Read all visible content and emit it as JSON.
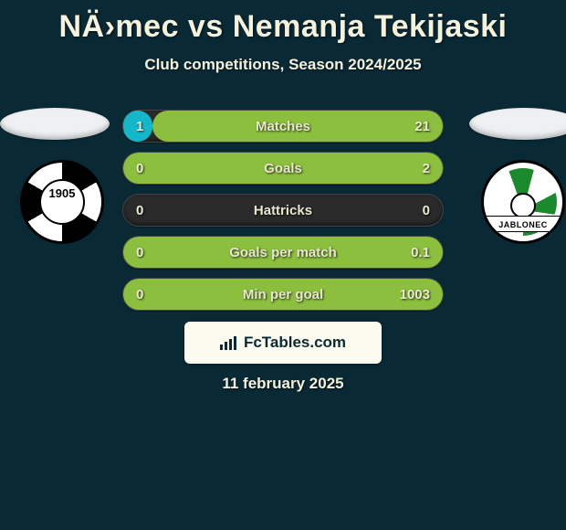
{
  "title": "NÄ›mec vs Nemanja Tekijaski",
  "subtitle": "Club competitions, Season 2024/2025",
  "date_text": "11 february 2025",
  "branding": "FcTables.com",
  "colors": {
    "background": "#092935",
    "text": "#f4f2dc",
    "pill_bg": "#2a2a2a",
    "left_series": "#12b8c9",
    "right_series": "#8dbf3f"
  },
  "layout": {
    "pill_width": 352,
    "pill_height": 36,
    "pill_radius": 18,
    "label_fontsize": 15,
    "value_fontsize": 15,
    "title_fontsize": 34,
    "subtitle_fontsize": 17
  },
  "left_badge": {
    "name": "SK Dynamo České Budějovice",
    "year_text": "1905"
  },
  "right_badge": {
    "name": "FK Baumit Jablonec",
    "ribbon_text": "JABLONEC"
  },
  "stats": [
    {
      "label": "Matches",
      "left_value": "1",
      "right_value": "21",
      "left_fill_pct": 9,
      "right_fill_pct": 91
    },
    {
      "label": "Goals",
      "left_value": "0",
      "right_value": "2",
      "left_fill_pct": 0,
      "right_fill_pct": 100
    },
    {
      "label": "Hattricks",
      "left_value": "0",
      "right_value": "0",
      "left_fill_pct": 0,
      "right_fill_pct": 0
    },
    {
      "label": "Goals per match",
      "left_value": "0",
      "right_value": "0.1",
      "left_fill_pct": 0,
      "right_fill_pct": 100
    },
    {
      "label": "Min per goal",
      "left_value": "0",
      "right_value": "1003",
      "left_fill_pct": 0,
      "right_fill_pct": 100
    }
  ]
}
